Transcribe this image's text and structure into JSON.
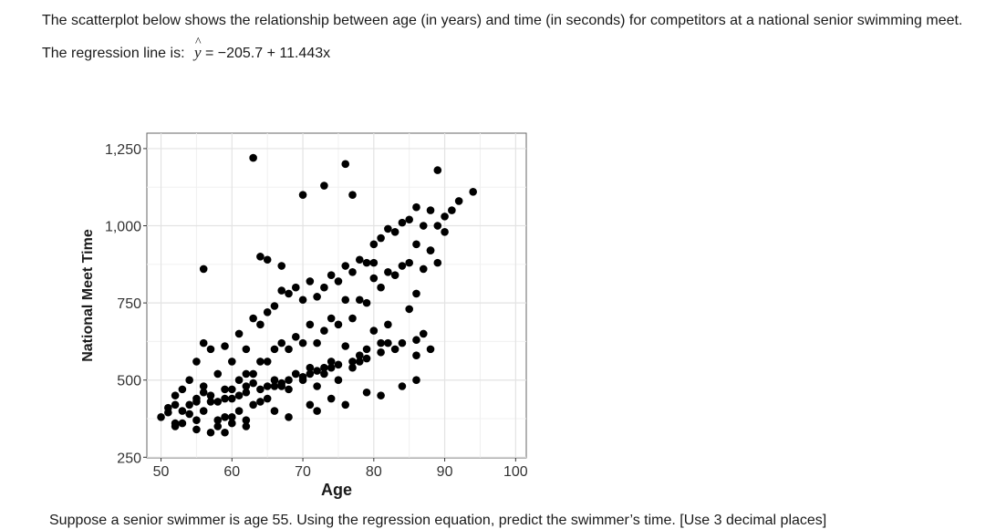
{
  "intro": {
    "text": "The scatterplot below shows the relationship between age (in years) and time (in seconds) for competitors at a national senior swimming meet.",
    "regression_prefix": "The regression line is:",
    "regression_symbol": "y",
    "regression_rhs": "= −205.7 + 11.443x"
  },
  "question": {
    "text": "Suppose a senior swimmer is age 55. Using the regression equation, predict the swimmer’s time. [Use 3 decimal places]"
  },
  "chart_data": {
    "type": "scatter",
    "xlabel": "Age",
    "ylabel": "National Meet Time",
    "xlim": [
      48,
      101.5
    ],
    "ylim": [
      248,
      1300
    ],
    "xticks": [
      50,
      60,
      70,
      80,
      90,
      100
    ],
    "xtick_labels": [
      "50",
      "60",
      "70",
      "80",
      "90",
      "100"
    ],
    "yticks": [
      250,
      500,
      750,
      1000,
      1250
    ],
    "ytick_labels": [
      "250",
      "500",
      "750",
      "1,000",
      "1,250"
    ],
    "grid": true,
    "point_color": "#000000",
    "x": [
      50,
      51,
      52,
      52,
      53,
      53,
      54,
      54,
      55,
      55,
      55,
      56,
      56,
      56,
      57,
      57,
      57,
      58,
      58,
      58,
      59,
      59,
      59,
      60,
      60,
      60,
      61,
      61,
      61,
      62,
      62,
      62,
      63,
      63,
      63,
      64,
      64,
      64,
      65,
      65,
      65,
      66,
      66,
      66,
      67,
      67,
      67,
      68,
      68,
      68,
      69,
      69,
      69,
      70,
      70,
      70,
      71,
      71,
      71,
      72,
      72,
      72,
      73,
      73,
      73,
      74,
      74,
      74,
      75,
      75,
      75,
      76,
      76,
      76,
      77,
      77,
      77,
      78,
      78,
      78,
      79,
      79,
      79,
      80,
      80,
      80,
      81,
      81,
      81,
      82,
      82,
      82,
      83,
      83,
      84,
      84,
      85,
      85,
      86,
      86,
      86,
      87,
      87,
      88,
      88,
      89,
      89,
      90,
      90,
      91,
      92,
      94,
      52,
      56,
      60,
      63,
      66,
      69,
      73,
      77,
      51,
      55,
      59,
      62,
      65,
      68,
      71,
      74,
      78,
      81,
      84,
      87,
      54,
      57,
      61,
      64,
      67,
      70,
      72,
      75,
      79,
      83,
      86,
      63,
      64,
      70,
      76,
      86,
      56,
      62,
      65,
      67,
      73,
      77,
      80,
      82,
      85,
      88,
      53,
      58,
      60,
      66,
      71,
      74,
      79,
      86,
      89,
      52,
      55,
      59,
      62,
      68,
      72,
      76,
      81,
      84,
      88
    ],
    "y": [
      380,
      395,
      420,
      360,
      470,
      400,
      500,
      390,
      560,
      440,
      370,
      620,
      480,
      400,
      600,
      450,
      330,
      520,
      430,
      350,
      610,
      470,
      380,
      560,
      440,
      360,
      650,
      500,
      400,
      600,
      480,
      370,
      700,
      520,
      420,
      680,
      560,
      430,
      720,
      560,
      440,
      740,
      600,
      480,
      790,
      620,
      480,
      780,
      600,
      470,
      800,
      640,
      520,
      760,
      620,
      500,
      820,
      680,
      540,
      770,
      620,
      480,
      800,
      660,
      520,
      840,
      700,
      560,
      820,
      680,
      500,
      870,
      760,
      610,
      850,
      700,
      540,
      890,
      760,
      580,
      880,
      750,
      600,
      940,
      830,
      660,
      960,
      800,
      620,
      990,
      850,
      680,
      980,
      840,
      1010,
      870,
      1020,
      880,
      1060,
      940,
      780,
      1000,
      860,
      1050,
      920,
      1000,
      880,
      1030,
      980,
      1050,
      1080,
      1110,
      450,
      460,
      470,
      490,
      500,
      520,
      540,
      560,
      410,
      430,
      440,
      460,
      480,
      500,
      520,
      540,
      560,
      590,
      620,
      650,
      420,
      430,
      450,
      470,
      490,
      510,
      530,
      550,
      570,
      600,
      630,
      1220,
      900,
      1100,
      1200,
      580,
      860,
      520,
      890,
      870,
      1130,
      1100,
      880,
      620,
      730,
      920,
      360,
      370,
      380,
      400,
      420,
      440,
      460,
      500,
      1180,
      350,
      340,
      330,
      350,
      380,
      400,
      420,
      450,
      480,
      600
    ]
  }
}
